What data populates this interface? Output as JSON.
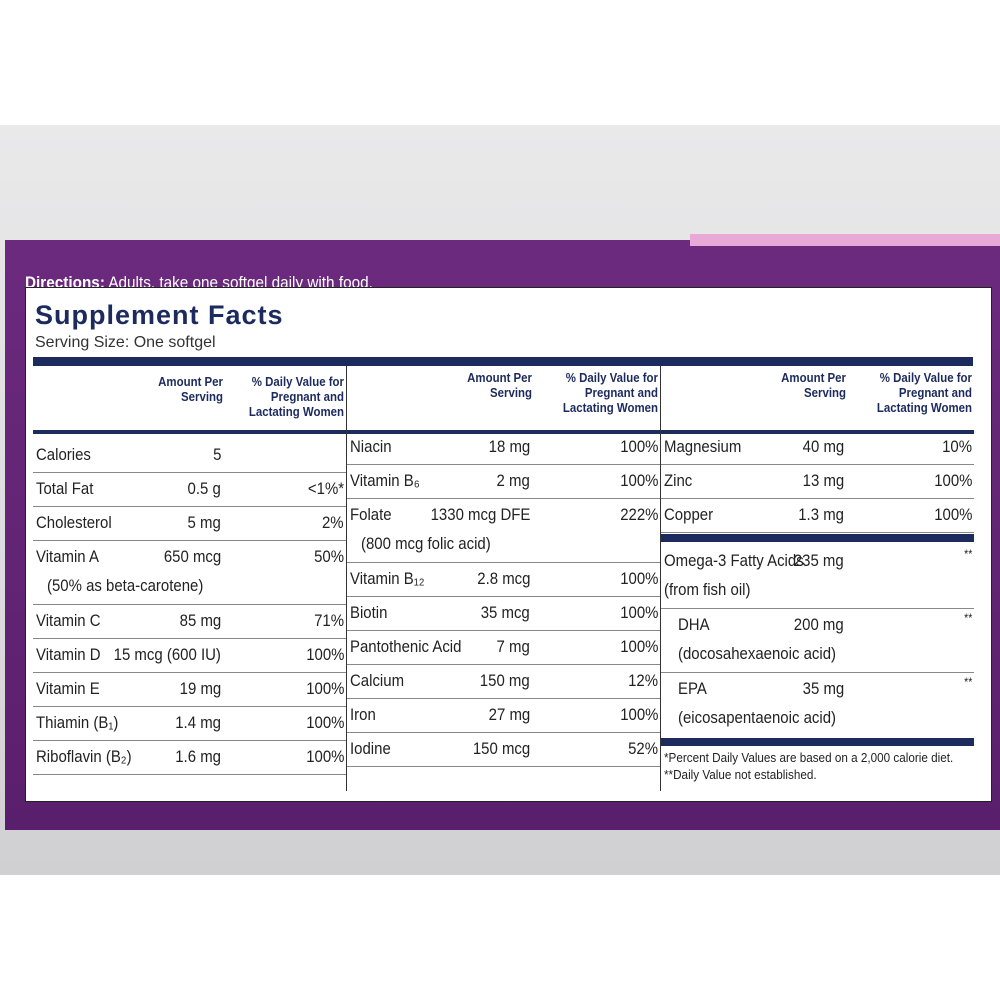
{
  "directions": {
    "label": "Directions:",
    "text": "Adults, take one softgel daily with food."
  },
  "title": "Supplement Facts",
  "serving_size": "Serving Size: One softgel",
  "columns": [
    {
      "headers": {
        "amount": "Amount Per Serving",
        "dv": "% Daily Value for Pregnant and Lactating Women"
      },
      "rows": [
        {
          "name": "Calories",
          "amount": "5"
        },
        {
          "name": "Total Fat",
          "amount": "0.5 g",
          "dv": "<1%*"
        },
        {
          "name": "Cholesterol",
          "amount": "5 mg",
          "dv": "2%"
        },
        {
          "name": "Vitamin A",
          "amount": "650 mcg",
          "dv": "50%",
          "note": "(50% as beta-carotene)"
        },
        {
          "name": "Vitamin C",
          "amount": "85 mg",
          "dv": "71%"
        },
        {
          "name": "Vitamin D",
          "amount": "15 mcg (600 IU)",
          "dv": "100%"
        },
        {
          "name": "Vitamin E",
          "amount": "19 mg",
          "dv": "100%"
        },
        {
          "name": "Thiamin (B₁)",
          "amount": "1.4 mg",
          "dv": "100%"
        },
        {
          "name": "Riboflavin (B₂)",
          "amount": "1.6 mg",
          "dv": "100%"
        }
      ]
    },
    {
      "headers": {
        "amount": "Amount Per Serving",
        "dv": "% Daily Value for Pregnant and Lactating Women"
      },
      "rows": [
        {
          "name": "Niacin",
          "amount": "18 mg",
          "dv": "100%"
        },
        {
          "name": "Vitamin B₆",
          "amount": "2 mg",
          "dv": "100%"
        },
        {
          "name": "Folate",
          "amount": "1330 mcg DFE",
          "dv": "222%",
          "note": "(800 mcg folic acid)"
        },
        {
          "name": "Vitamin B₁₂",
          "amount": "2.8 mcg",
          "dv": "100%"
        },
        {
          "name": "Biotin",
          "amount": "35 mcg",
          "dv": "100%"
        },
        {
          "name": "Pantothenic Acid",
          "amount": "7 mg",
          "dv": "100%"
        },
        {
          "name": "Calcium",
          "amount": "150 mg",
          "dv": "12%"
        },
        {
          "name": "Iron",
          "amount": "27 mg",
          "dv": "100%"
        },
        {
          "name": "Iodine",
          "amount": "150 mcg",
          "dv": "52%"
        }
      ]
    },
    {
      "headers": {
        "amount": "Amount Per Serving",
        "dv": "% Daily Value for Pregnant and Lactating Women"
      },
      "rows": [
        {
          "name": "Magnesium",
          "amount": "40 mg",
          "dv": "10%"
        },
        {
          "name": "Zinc",
          "amount": "13 mg",
          "dv": "100%"
        },
        {
          "name": "Copper",
          "amount": "1.3 mg",
          "dv": "100%"
        },
        {
          "name": "Omega-3 Fatty Acids",
          "amount": "235 mg",
          "dv": "**",
          "note": "(from fish oil)"
        },
        {
          "name": "DHA",
          "amount": "200 mg",
          "dv": "**",
          "note": "(docosahexaenoic acid)"
        },
        {
          "name": "EPA",
          "amount": "35 mg",
          "dv": "**",
          "note": "(eicosapentaenoic acid)"
        }
      ]
    }
  ],
  "footnotes": [
    "*Percent Daily Values are based on a 2,000 calorie diet.",
    "**Daily Value not established."
  ]
}
